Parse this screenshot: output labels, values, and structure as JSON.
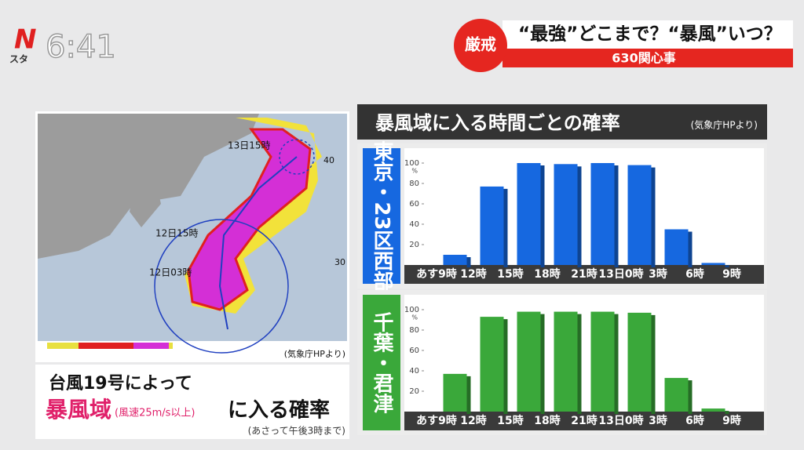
{
  "header": {
    "logo": "N",
    "logo_sub": "スタ",
    "clock": "6:41",
    "badge": "厳戒",
    "headline": "“最強”どこまで？“暴風”いつ？",
    "corner": "630関心事"
  },
  "map": {
    "labels": [
      "13日15時",
      "12日15時",
      "12日03時"
    ],
    "lat_labels": [
      "40",
      "30"
    ],
    "source": "(気象庁HPより)"
  },
  "caption": {
    "line1": "台風19号によって",
    "highlight": "暴風域",
    "note": "(風速25m/s以上)",
    "line2_end": "に入る確率",
    "footnote": "(あさって午後3時まで)"
  },
  "charts_title": {
    "title": "暴風域に入る時間ごとの確率",
    "source": "(気象庁HPより)"
  },
  "chart_data": [
    {
      "type": "histogram",
      "title": "東京・23区西部",
      "bins": [
        "あす9時",
        "12時",
        "15時",
        "18時",
        "21時",
        "13日0時",
        "3時",
        "6時",
        "9時"
      ],
      "values": [
        10,
        77,
        100,
        99,
        100,
        98,
        35,
        2
      ],
      "color": "#1668e0",
      "ylim": [
        0,
        110
      ],
      "yticks": [
        20,
        40,
        60,
        80,
        100
      ],
      "yunit": "%",
      "grid": false
    },
    {
      "type": "histogram",
      "title": "千葉・君津",
      "bins": [
        "あす9時",
        "12時",
        "15時",
        "18時",
        "21時",
        "13日0時",
        "3時",
        "6時",
        "9時"
      ],
      "values": [
        37,
        93,
        98,
        98,
        98,
        97,
        33,
        3
      ],
      "color": "#3aa83a",
      "ylim": [
        0,
        110
      ],
      "yticks": [
        20,
        40,
        60,
        80,
        100
      ],
      "yunit": "%",
      "grid": false
    }
  ]
}
